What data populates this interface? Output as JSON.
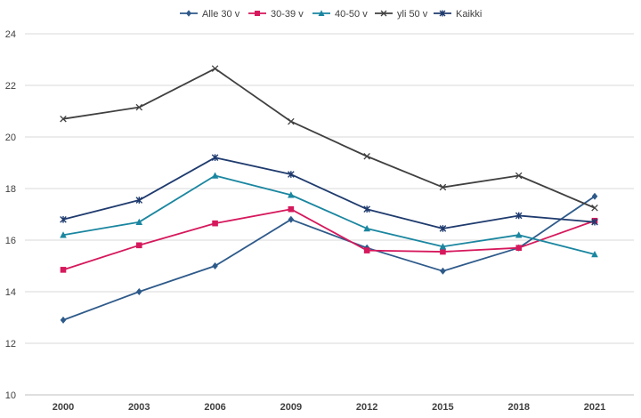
{
  "chart_data": {
    "type": "line",
    "categories": [
      "2000",
      "2003",
      "2006",
      "2009",
      "2012",
      "2015",
      "2018",
      "2021"
    ],
    "series": [
      {
        "name": "Alle 30 v",
        "color": "#2e5a8a",
        "marker": "diamond",
        "values": [
          12.9,
          14.0,
          15.0,
          16.8,
          15.7,
          14.8,
          15.7,
          17.7
        ]
      },
      {
        "name": "30-39 v",
        "color": "#d6185c",
        "marker": "square",
        "values": [
          14.85,
          15.8,
          16.65,
          17.2,
          15.6,
          15.55,
          15.7,
          16.75
        ]
      },
      {
        "name": "40-50 v",
        "color": "#1a86a0",
        "marker": "triangle",
        "values": [
          16.2,
          16.7,
          18.5,
          17.75,
          16.45,
          15.75,
          16.2,
          15.45
        ]
      },
      {
        "name": "yli 50 v",
        "color": "#404040",
        "marker": "x",
        "values": [
          20.7,
          21.15,
          22.65,
          20.6,
          19.25,
          18.05,
          18.5,
          17.25
        ]
      },
      {
        "name": "Kaikki",
        "color": "#1f3b6e",
        "marker": "star",
        "values": [
          16.8,
          17.55,
          19.2,
          18.55,
          17.2,
          16.45,
          16.95,
          16.7
        ]
      }
    ],
    "yticks": [
      "10",
      "12",
      "14",
      "16",
      "18",
      "20",
      "22",
      "24"
    ],
    "ylim": [
      10,
      24
    ],
    "grid": "horizontal",
    "legend": "top"
  }
}
